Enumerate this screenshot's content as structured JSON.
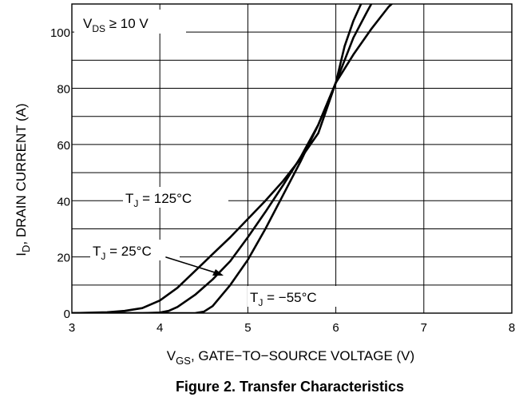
{
  "chart_data": {
    "type": "line",
    "title": "Figure 2. Transfer Characteristics",
    "xlabel": "V_GS, GATE−TO−SOURCE VOLTAGE (V)",
    "ylabel": "I_D, DRAIN CURRENT (A)",
    "xlim": [
      3,
      8
    ],
    "ylim": [
      0,
      110
    ],
    "xticks": [
      3,
      4,
      5,
      6,
      7,
      8
    ],
    "yticks": [
      0,
      20,
      40,
      60,
      80,
      100
    ],
    "y_minor_grid": [
      10,
      30,
      50,
      70,
      90,
      110
    ],
    "grid": true,
    "annotations": {
      "condition": "V_DS ≥ 10 V"
    },
    "series": [
      {
        "name": "T_J = 125°C",
        "x": [
          3.0,
          3.4,
          3.6,
          3.8,
          4.0,
          4.2,
          4.4,
          4.6,
          4.8,
          5.0,
          5.2,
          5.4,
          5.6,
          5.8,
          6.0,
          6.2,
          6.4,
          6.6,
          6.67
        ],
        "y": [
          0,
          0.3,
          0.8,
          1.8,
          4.5,
          9,
          15,
          21,
          27,
          33.5,
          40,
          47,
          55,
          64,
          82,
          92,
          101,
          109,
          111
        ]
      },
      {
        "name": "T_J = 25°C",
        "x": [
          3.0,
          3.8,
          4.0,
          4.1,
          4.2,
          4.4,
          4.6,
          4.8,
          5.0,
          5.2,
          5.4,
          5.6,
          5.8,
          6.0,
          6.2,
          6.35,
          6.42
        ],
        "y": [
          0,
          0,
          0.2,
          0.8,
          2.2,
          6.5,
          12,
          18.5,
          27,
          36,
          45.5,
          55.5,
          67,
          82,
          98,
          107,
          111
        ]
      },
      {
        "name": "T_J = −55°C",
        "x": [
          3.0,
          4.4,
          4.5,
          4.6,
          4.8,
          5.0,
          5.2,
          5.4,
          5.6,
          5.8,
          6.0,
          6.1,
          6.2,
          6.3
        ],
        "y": [
          0,
          0,
          0.5,
          2.5,
          10,
          19,
          30,
          42,
          54,
          67,
          82,
          95,
          104,
          111
        ]
      }
    ]
  }
}
